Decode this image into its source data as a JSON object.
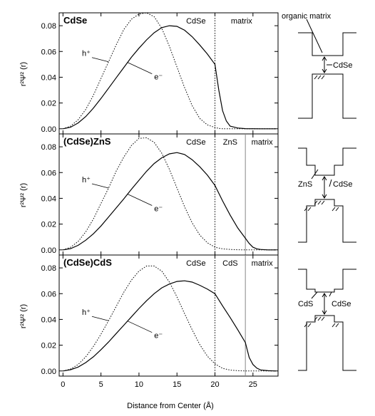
{
  "chart_data": {
    "type": "line",
    "x_axis": {
      "label": "Distance from Center (Å)",
      "range": [
        -0.5,
        28.3
      ],
      "ticks": [
        0,
        5,
        10,
        15,
        20,
        25
      ]
    },
    "y_axis": {
      "label": "r²Ψ² (r)",
      "range": [
        -0.004,
        0.09
      ],
      "ticks": [
        "0.00",
        "0.02",
        "0.04",
        "0.06",
        "0.08"
      ]
    },
    "panels": [
      {
        "title": "CdSe",
        "region_labels": [
          {
            "text": "CdSe",
            "x": 17.5
          },
          {
            "text": "matrix",
            "x": 23.5
          }
        ],
        "boundaries": [
          {
            "x": 20,
            "style": "dotted"
          }
        ],
        "series": [
          {
            "name": "e⁻",
            "style": "solid",
            "x": [
              0,
              1,
              2,
              3,
              4,
              5,
              6,
              7,
              8,
              9,
              10,
              11,
              12,
              13,
              14,
              15,
              16,
              17,
              18,
              19,
              20,
              20.5,
              21,
              21.5,
              22,
              23,
              24,
              26,
              28
            ],
            "y": [
              0,
              0.0012,
              0.0045,
              0.0095,
              0.016,
              0.0235,
              0.0315,
              0.0395,
              0.0475,
              0.0555,
              0.0625,
              0.069,
              0.0745,
              0.0785,
              0.08,
              0.0795,
              0.0765,
              0.0715,
              0.065,
              0.058,
              0.05,
              0.03,
              0.014,
              0.006,
              0.002,
              0.0006,
              0.0001,
              0,
              0
            ]
          },
          {
            "name": "h⁺",
            "style": "dotted",
            "x": [
              0,
              1,
              2,
              3,
              4,
              5,
              6,
              7,
              8,
              9,
              10,
              11,
              12,
              13,
              14,
              15,
              16,
              17,
              18,
              19,
              20,
              20.5,
              21,
              22,
              24,
              28
            ],
            "y": [
              0,
              0.002,
              0.007,
              0.015,
              0.026,
              0.039,
              0.052,
              0.065,
              0.077,
              0.085,
              0.089,
              0.09,
              0.087,
              0.078,
              0.064,
              0.048,
              0.032,
              0.018,
              0.008,
              0.003,
              0.001,
              0.0003,
              0,
              0,
              0,
              0
            ]
          }
        ],
        "labels": [
          {
            "text": "h⁺",
            "series": "h⁺"
          },
          {
            "text": "e⁻",
            "series": "e⁻"
          }
        ]
      },
      {
        "title": "(CdSe)ZnS",
        "region_labels": [
          {
            "text": "CdSe",
            "x": 17.5
          },
          {
            "text": "ZnS",
            "x": 22
          },
          {
            "text": "matrix",
            "x": 26.2
          }
        ],
        "boundaries": [
          {
            "x": 20,
            "style": "dotted"
          },
          {
            "x": 24,
            "style": "solid-light"
          }
        ],
        "series": [
          {
            "name": "e⁻",
            "style": "solid",
            "x": [
              0,
              1,
              2,
              3,
              4,
              5,
              6,
              7,
              8,
              9,
              10,
              11,
              12,
              13,
              14,
              15,
              16,
              17,
              18,
              19,
              20,
              21,
              22,
              23,
              24,
              24.5,
              25,
              25.5,
              26,
              27,
              28
            ],
            "y": [
              0,
              0.001,
              0.0035,
              0.0075,
              0.0125,
              0.0185,
              0.0255,
              0.0325,
              0.0395,
              0.047,
              0.054,
              0.061,
              0.067,
              0.0715,
              0.0745,
              0.0755,
              0.074,
              0.07,
              0.0645,
              0.058,
              0.05,
              0.038,
              0.027,
              0.017,
              0.009,
              0.005,
              0.002,
              0.0008,
              0.0003,
              0,
              0
            ]
          },
          {
            "name": "h⁺",
            "style": "dotted",
            "x": [
              0,
              1,
              2,
              3,
              4,
              5,
              6,
              7,
              8,
              9,
              10,
              11,
              12,
              13,
              14,
              15,
              16,
              17,
              18,
              19,
              20,
              21,
              22,
              23,
              24,
              26,
              28
            ],
            "y": [
              0,
              0.002,
              0.0065,
              0.014,
              0.024,
              0.036,
              0.048,
              0.061,
              0.072,
              0.081,
              0.0865,
              0.087,
              0.0835,
              0.075,
              0.0625,
              0.048,
              0.0335,
              0.021,
              0.0115,
              0.0055,
              0.002,
              0.0008,
              0.0003,
              0.0001,
              0,
              0,
              0
            ]
          }
        ],
        "labels": [
          {
            "text": "h⁺",
            "series": "h⁺"
          },
          {
            "text": "e⁻",
            "series": "e⁻"
          }
        ]
      },
      {
        "title": "(CdSe)CdS",
        "region_labels": [
          {
            "text": "CdSe",
            "x": 17.5
          },
          {
            "text": "CdS",
            "x": 22
          },
          {
            "text": "matrix",
            "x": 26.2
          }
        ],
        "boundaries": [
          {
            "x": 20,
            "style": "dotted"
          },
          {
            "x": 24,
            "style": "solid-light"
          }
        ],
        "series": [
          {
            "name": "e⁻",
            "style": "solid",
            "x": [
              0,
              1,
              2,
              3,
              4,
              5,
              6,
              7,
              8,
              9,
              10,
              11,
              12,
              13,
              14,
              15,
              16,
              17,
              18,
              19,
              20,
              21,
              22,
              23,
              24,
              24.5,
              25,
              25.5,
              26,
              27,
              28
            ],
            "y": [
              0,
              0.001,
              0.003,
              0.0065,
              0.011,
              0.0165,
              0.0225,
              0.029,
              0.0355,
              0.042,
              0.0485,
              0.0545,
              0.06,
              0.0645,
              0.0675,
              0.0695,
              0.07,
              0.069,
              0.0665,
              0.0635,
              0.06,
              0.0505,
              0.0415,
              0.032,
              0.022,
              0.0105,
              0.005,
              0.0022,
              0.0008,
              0.0002,
              0
            ]
          },
          {
            "name": "h⁺",
            "style": "dotted",
            "x": [
              0,
              1,
              2,
              3,
              4,
              5,
              6,
              7,
              8,
              9,
              10,
              11,
              12,
              13,
              14,
              15,
              16,
              17,
              18,
              19,
              20,
              21,
              22,
              23,
              24,
              26,
              28
            ],
            "y": [
              0,
              0.0015,
              0.005,
              0.011,
              0.019,
              0.0285,
              0.039,
              0.05,
              0.061,
              0.0705,
              0.0775,
              0.0815,
              0.0815,
              0.0775,
              0.069,
              0.0575,
              0.0445,
              0.032,
              0.0205,
              0.0115,
              0.0055,
              0.002,
              0.0007,
              0.0002,
              0,
              0,
              0
            ]
          }
        ],
        "labels": [
          {
            "text": "h⁺",
            "series": "h⁺"
          },
          {
            "text": "e⁻",
            "series": "e⁻"
          }
        ]
      }
    ]
  },
  "diagrams": [
    {
      "labels": [
        "organic matrix",
        "CdSe"
      ]
    },
    {
      "labels": [
        "ZnS",
        "CdSe"
      ]
    },
    {
      "labels": [
        "CdS",
        "CdSe"
      ]
    }
  ]
}
